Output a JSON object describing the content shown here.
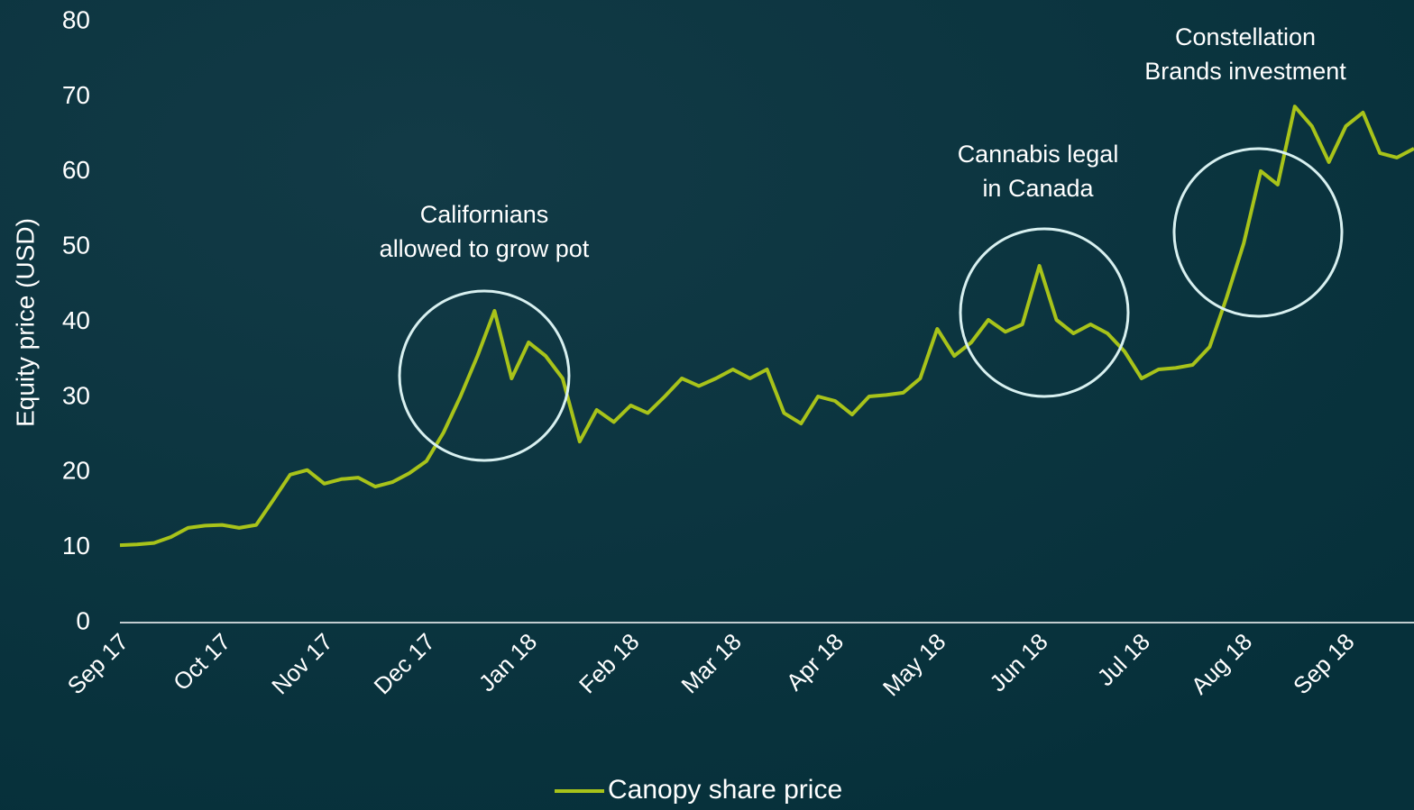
{
  "chart_data": {
    "type": "line",
    "y_label": "Equity price (USD)",
    "ylim": [
      0,
      80
    ],
    "yticks": [
      0,
      10,
      20,
      30,
      40,
      50,
      60,
      70,
      80
    ],
    "categories": [
      "Sep 17",
      null,
      null,
      null,
      null,
      null,
      "Oct 17",
      null,
      null,
      null,
      null,
      null,
      "Nov 17",
      null,
      null,
      null,
      null,
      null,
      "Dec 17",
      null,
      null,
      null,
      null,
      null,
      "Jan 18",
      null,
      null,
      null,
      null,
      null,
      "Feb 18",
      null,
      null,
      null,
      null,
      null,
      "Mar 18",
      null,
      null,
      null,
      null,
      null,
      "Apr 18",
      null,
      null,
      null,
      null,
      null,
      "May 18",
      null,
      null,
      null,
      null,
      null,
      "Jun 18",
      null,
      null,
      null,
      null,
      null,
      "Jul 18",
      null,
      null,
      null,
      null,
      null,
      "Aug 18",
      null,
      null,
      null,
      null,
      null,
      "Sep 18",
      null,
      null,
      null,
      null
    ],
    "series": [
      {
        "name": "Canopy share price",
        "color": "#a8c31a",
        "values": [
          10.3,
          10.4,
          10.6,
          11.4,
          12.6,
          12.9,
          13.0,
          12.6,
          13.0,
          16.3,
          19.7,
          20.3,
          18.5,
          19.1,
          19.3,
          18.1,
          18.7,
          19.9,
          21.5,
          25.3,
          30.1,
          35.5,
          41.5,
          32.5,
          37.3,
          35.5,
          32.5,
          24.1,
          28.3,
          26.7,
          28.9,
          27.9,
          30.1,
          32.5,
          31.5,
          32.5,
          33.7,
          32.5,
          33.7,
          27.9,
          26.5,
          30.1,
          29.5,
          27.7,
          30.1,
          30.3,
          30.6,
          32.5,
          39.1,
          35.5,
          37.3,
          40.3,
          38.7,
          39.7,
          47.5,
          40.3,
          38.5,
          39.7,
          38.5,
          36.1,
          32.5,
          33.7,
          33.9,
          34.3,
          36.7,
          43.3,
          50.5,
          60.1,
          58.3,
          68.7,
          66.1,
          61.3,
          66.1,
          67.9,
          62.5,
          61.9,
          63.1
        ]
      }
    ],
    "annotations": [
      [
        "Californians",
        "allowed to grow pot"
      ],
      [
        "Cannabis legal",
        "in Canada"
      ],
      [
        "Constellation",
        "Brands investment"
      ]
    ]
  }
}
